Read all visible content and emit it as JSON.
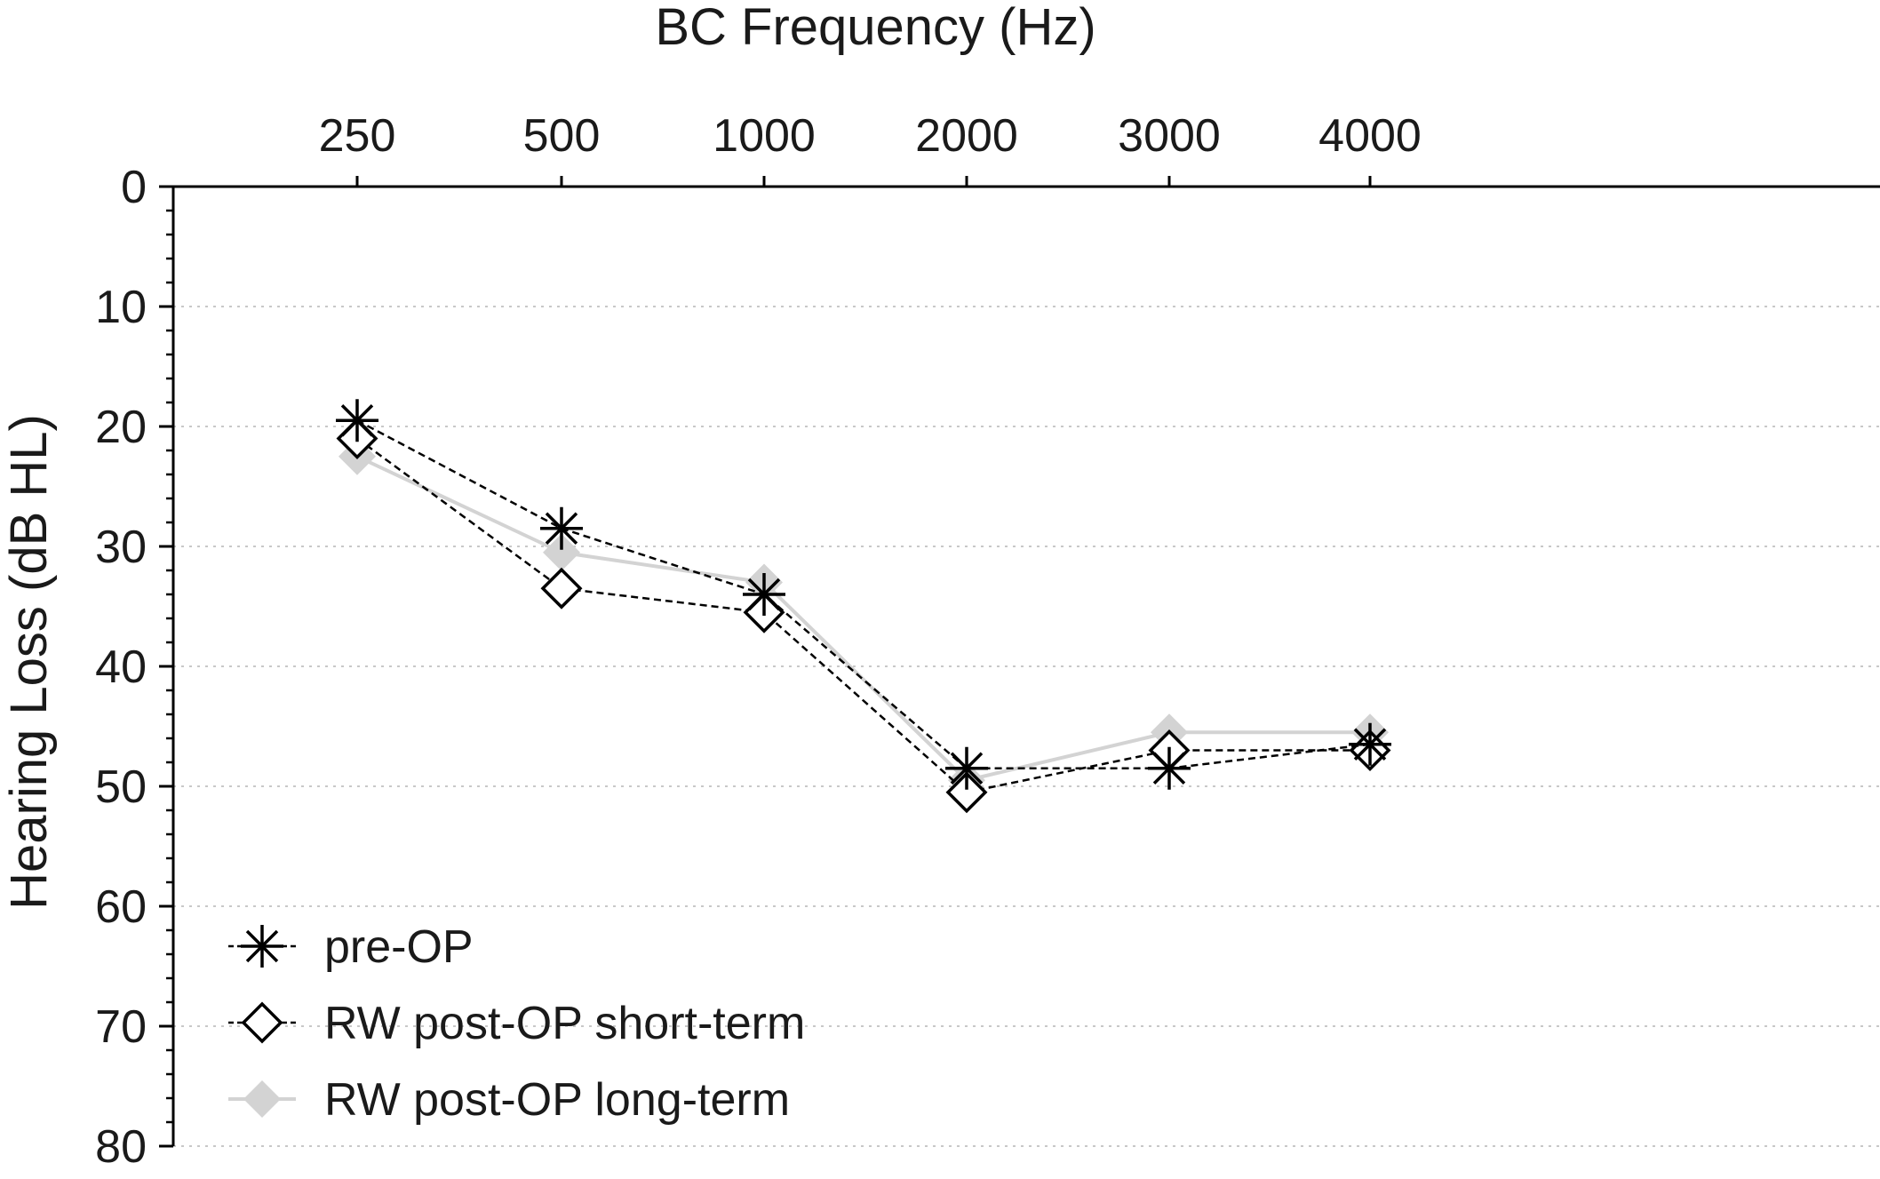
{
  "chart_data": {
    "type": "line",
    "xlabel": "BC Frequency (Hz)",
    "ylabel": "Hearing Loss (dB HL)",
    "categories": [
      "250",
      "500",
      "1000",
      "2000",
      "3000",
      "4000"
    ],
    "x_axis_position": "top",
    "y_inverted": true,
    "ylim": [
      0,
      80
    ],
    "yticks": [
      "0",
      "10",
      "20",
      "30",
      "40",
      "50",
      "60",
      "70",
      "80"
    ],
    "grid": "horizontal dotted",
    "legend_position": "bottom-left",
    "series": [
      {
        "name": "pre-OP",
        "marker": "asterisk",
        "line": "dashed",
        "color": "#000000",
        "values": [
          19.5,
          28.5,
          34.0,
          48.5,
          48.5,
          46.5
        ]
      },
      {
        "name": "RW post-OP short-term",
        "marker": "open-diamond",
        "line": "dashed",
        "color": "#000000",
        "values": [
          21.0,
          33.5,
          35.5,
          50.5,
          47.0,
          47.0
        ]
      },
      {
        "name": "RW post-OP long-term",
        "marker": "filled-diamond",
        "line": "solid",
        "color": "#d3d3d3",
        "values": [
          22.5,
          30.5,
          33.0,
          49.5,
          45.5,
          45.5
        ]
      }
    ]
  }
}
